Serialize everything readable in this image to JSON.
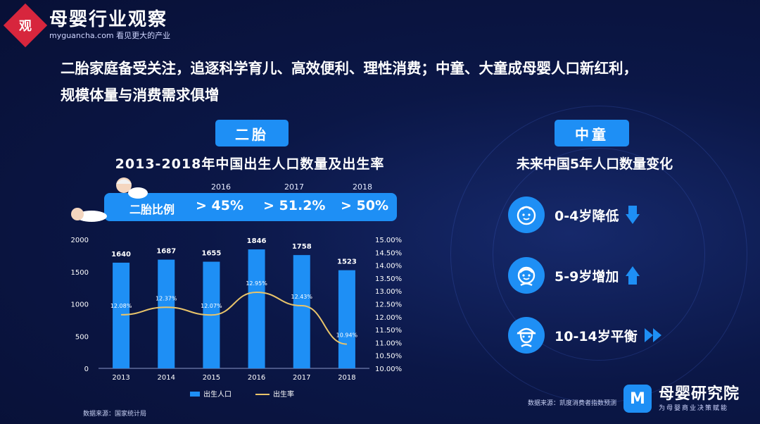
{
  "logo": {
    "mark": "观",
    "title": "母婴行业观察",
    "subtitle": "myguancha.com 看见更大的产业"
  },
  "headline": {
    "line1": "二胎家庭备受关注，追逐科学育儿、高效便利、理性消费；中童、大童成母婴人口新红利，",
    "line2": "规模体量与消费需求俱增"
  },
  "left": {
    "tag": "二胎",
    "chart_title": "2013-2018年中国出生人口数量及出生率",
    "ratio": {
      "label": "二胎比例",
      "items": [
        {
          "year": "2016",
          "value": "> 45%"
        },
        {
          "year": "2017",
          "value": "> 51.2%"
        },
        {
          "year": "2018",
          "value": "> 50%"
        }
      ]
    },
    "source": "数据来源：国家统计局"
  },
  "chart_data": {
    "type": "bar",
    "categories": [
      "2013",
      "2014",
      "2015",
      "2016",
      "2017",
      "2018"
    ],
    "series": [
      {
        "name": "出生人口",
        "type": "bar",
        "axis": "left",
        "values": [
          1640,
          1687,
          1655,
          1846,
          1758,
          1523
        ],
        "labels": [
          "1640",
          "1687",
          "1655",
          "1846",
          "1758",
          "1523"
        ],
        "color": "#1e8ff5"
      },
      {
        "name": "出生率",
        "type": "line",
        "axis": "right",
        "values": [
          12.08,
          12.37,
          12.07,
          12.95,
          12.43,
          10.94
        ],
        "labels": [
          "12.08%",
          "12.37%",
          "12.07%",
          "12.95%",
          "12.43%",
          "10.94%"
        ],
        "color": "#e9c46a"
      }
    ],
    "y_left": {
      "lim": [
        0,
        2000
      ],
      "ticks": [
        "0",
        "500",
        "1000",
        "1500",
        "2000"
      ]
    },
    "y_right": {
      "lim": [
        10,
        15
      ],
      "ticks": [
        "10.00%",
        "10.50%",
        "11.00%",
        "11.50%",
        "12.00%",
        "12.50%",
        "13.00%",
        "13.50%",
        "14.00%",
        "14.50%",
        "15.00%"
      ]
    },
    "legend": {
      "position": "bottom",
      "items": [
        "出生人口",
        "出生率"
      ]
    },
    "grid": false
  },
  "right": {
    "tag": "中童",
    "title": "未来中国5年人口数量变化",
    "items": [
      {
        "label": "0-4岁降低",
        "icon": "baby-face-icon",
        "trend": "down"
      },
      {
        "label": "5-9岁增加",
        "icon": "child-face-icon",
        "trend": "up"
      },
      {
        "label": "10-14岁平衡",
        "icon": "teen-cap-face-icon",
        "trend": "flat"
      }
    ],
    "source": "数据来源：凯度消费者指数预测"
  },
  "brand": {
    "badge": "M",
    "name": "母婴研究院",
    "subtitle": "为母婴商业决策赋能"
  },
  "colors": {
    "background": "#0a1440",
    "accent": "#1e8ff5",
    "line": "#e9c46a"
  }
}
